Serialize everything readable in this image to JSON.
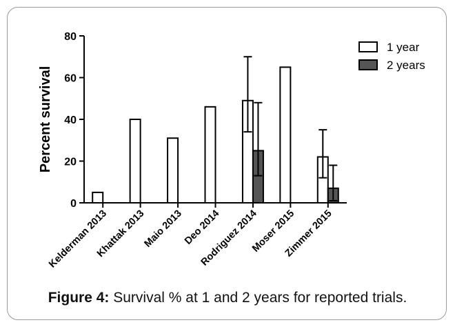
{
  "caption": {
    "label": "Figure 4:",
    "text": "Survival % at 1 and 2 years for reported trials."
  },
  "chart_data": {
    "type": "bar",
    "ylabel": "Percent survival",
    "ylim": [
      0,
      80
    ],
    "yticks": [
      0,
      20,
      40,
      60,
      80
    ],
    "categories": [
      "Kelderman 2013",
      "Khattak 2013",
      "Maio 2013",
      "Deo 2014",
      "Rodriguez 2014",
      "Moser 2015",
      "Zimmer 2015"
    ],
    "series": [
      {
        "name": "1 year",
        "color": "#ffffff",
        "values": [
          5,
          40,
          31,
          46,
          49,
          65,
          22
        ],
        "error_low": [
          null,
          null,
          null,
          null,
          34,
          null,
          12
        ],
        "error_high": [
          null,
          null,
          null,
          null,
          70,
          null,
          35
        ]
      },
      {
        "name": "2 years",
        "color": "#555555",
        "values": [
          null,
          null,
          null,
          null,
          25,
          null,
          7
        ],
        "error_low": [
          null,
          null,
          null,
          null,
          13,
          null,
          1
        ],
        "error_high": [
          null,
          null,
          null,
          null,
          48,
          null,
          18
        ]
      }
    ],
    "legend_position": "top-right",
    "grid": false
  }
}
